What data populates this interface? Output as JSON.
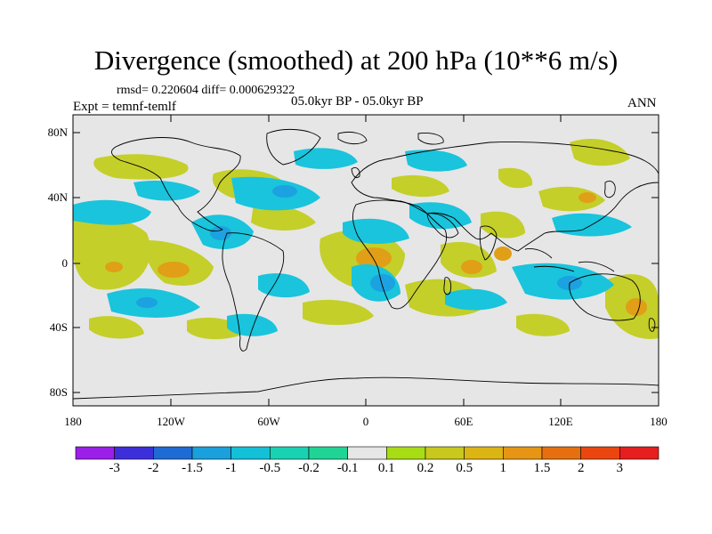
{
  "title": "Divergence (smoothed) at 200 hPa (10**6 m/s)",
  "stats": "rmsd= 0.220604 diff= 0.000629322",
  "experiment": "Expt = temnf-temlf",
  "period": "05.0kyr BP - 05.0kyr BP",
  "season": "ANN",
  "axes": {
    "y_labels": [
      "80N",
      "40N",
      "0",
      "40S",
      "80S"
    ],
    "x_labels": [
      "180",
      "120W",
      "60W",
      "0",
      "60E",
      "120E",
      "180"
    ]
  },
  "colorbar": {
    "labels": [
      "-3",
      "-2",
      "-1.5",
      "-1",
      "-0.5",
      "-0.2",
      "-0.1",
      "0.1",
      "0.2",
      "0.5",
      "1",
      "1.5",
      "2",
      "3"
    ],
    "colors": [
      "#9b1fe8",
      "#3c2fd9",
      "#1f6bd4",
      "#1aa0dc",
      "#14c0d8",
      "#19d2b4",
      "#1fd494",
      "#e6e6e6",
      "#a8dc14",
      "#c8c81e",
      "#dcb414",
      "#e69614",
      "#e6700f",
      "#eb460f",
      "#e61e1e"
    ]
  },
  "map": {
    "background": "#e6e6e6",
    "positive_color": "#c4cf2a",
    "strong_positive_color": "#e09f17",
    "negative_color": "#19c4dc",
    "strong_negative_color": "#1ca2e0"
  }
}
